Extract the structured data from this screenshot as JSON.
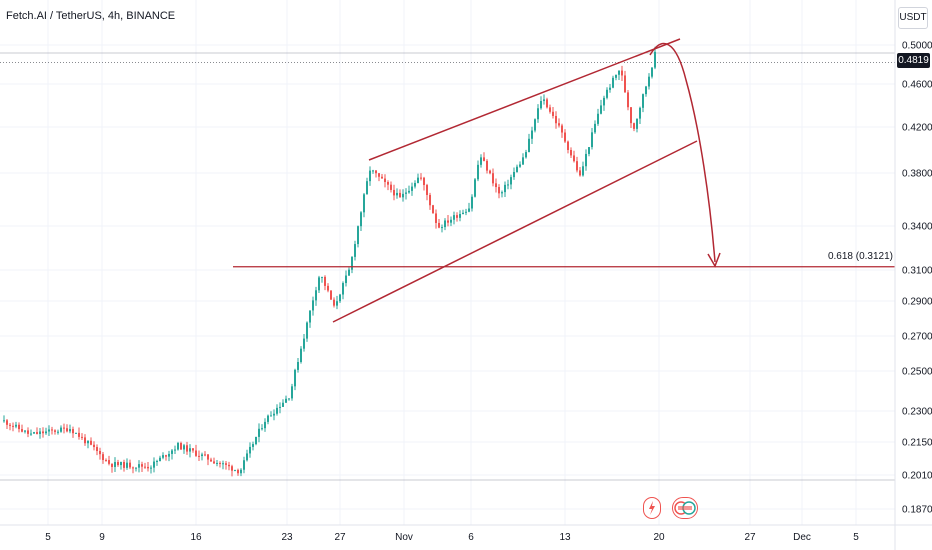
{
  "header": {
    "title": "Fetch.AI / TetherUS, 4h, BINANCE",
    "unit_label": "USDT"
  },
  "price_tag": "0.4819",
  "chart_data": {
    "type": "candlestick",
    "y_ticks": [
      "0.5000",
      "0.4600",
      "0.4200",
      "0.3800",
      "0.3400",
      "0.3100",
      "0.2900",
      "0.2700",
      "0.2500",
      "0.2300",
      "0.2150",
      "0.2010",
      "0.1870"
    ],
    "x_ticks": [
      "5",
      "9",
      "16",
      "23",
      "27",
      "Nov",
      "6",
      "13",
      "20",
      "27",
      "Dec",
      "5"
    ],
    "annotation": {
      "label": "0.618 (0.3121)",
      "price": 0.3121
    },
    "current_price": 0.4819,
    "pattern": "rising channel with projected drop toward 0.618 level"
  },
  "colors": {
    "up": "#26a69a",
    "down": "#ef5350",
    "annotation": "#b22833",
    "grid": "#f0f3fa"
  },
  "icons": [
    "lightning-icon",
    "earnings-icon"
  ]
}
